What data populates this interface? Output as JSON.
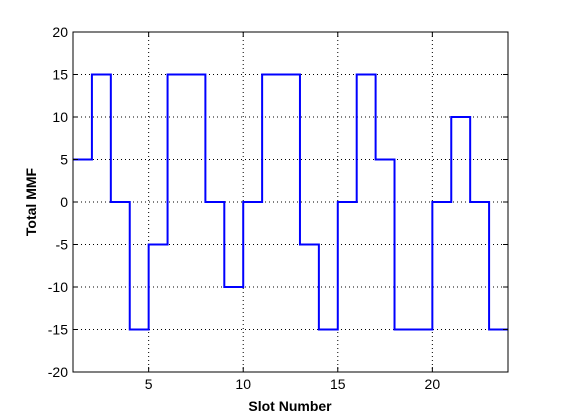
{
  "chart_data": {
    "type": "line",
    "title": "",
    "xlabel": "Slot Number",
    "ylabel": "Total MMF",
    "xlim": [
      1,
      24
    ],
    "ylim": [
      -20,
      20
    ],
    "grid": true,
    "x_ticks": [
      5,
      10,
      15,
      20
    ],
    "y_ticks": [
      -20,
      -15,
      -10,
      -5,
      0,
      5,
      10,
      15,
      20
    ],
    "x_tick_labels": [
      "5",
      "10",
      "15",
      "20"
    ],
    "y_tick_labels": [
      "-20",
      "-15",
      "-10",
      "-5",
      "0",
      "5",
      "10",
      "15",
      "20"
    ],
    "series": [
      {
        "name": "Total MMF",
        "style": "stairs",
        "color": "#0000ff",
        "x": [
          1,
          2,
          3,
          4,
          5,
          6,
          7,
          8,
          9,
          10,
          11,
          12,
          13,
          14,
          15,
          16,
          17,
          18,
          19,
          20,
          21,
          22,
          23,
          24
        ],
        "values": [
          5,
          15,
          0,
          -15,
          -5,
          15,
          15,
          0,
          -10,
          0,
          15,
          15,
          -5,
          -15,
          0,
          15,
          5,
          -15,
          -15,
          0,
          10,
          0,
          -15,
          -15
        ]
      }
    ]
  }
}
